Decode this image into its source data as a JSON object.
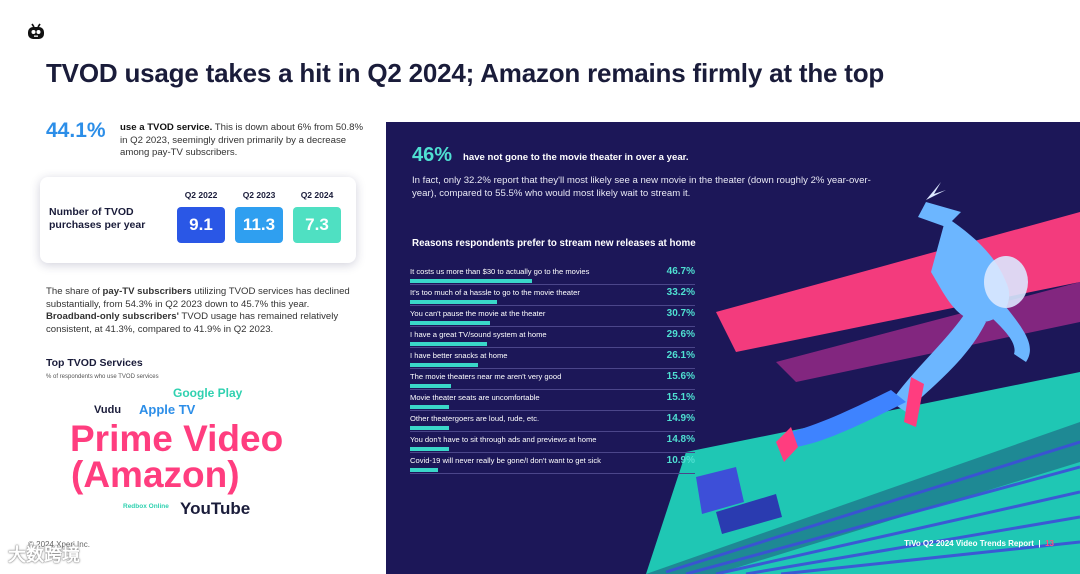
{
  "title": "TVOD usage takes a hit in Q2 2024; Amazon remains firmly at the top",
  "stat": {
    "value": "44.1%",
    "bold": "use a TVOD service.",
    "text": " This is down about 6% from 50.8% in Q2 2023, seemingly driven primarily by a decrease among pay-TV subscribers."
  },
  "purchases": {
    "label": "Number of TVOD purchases per year",
    "years": [
      "Q2 2022",
      "Q2 2023",
      "Q2 2024"
    ],
    "values": [
      "9.1",
      "11.3",
      "7.3"
    ],
    "colors": [
      "#2a57e6",
      "#2f9ff0",
      "#4fe0c2"
    ]
  },
  "share_paragraph": {
    "t1": "The share of ",
    "b1": "pay-TV subscribers",
    "t2": " utilizing TVOD services has declined substantially, from 54.3% in Q2 2023 down to 45.7% this year. ",
    "b2": "Broadband-only subscribers'",
    "t3": " TVOD usage has remained relatively consistent, at 41.3%, compared to 41.9% in Q2 2023."
  },
  "top_services": {
    "title": "Top TVOD Services",
    "subtitle": "% of respondents who use TVOD services",
    "google_play": "Google Play",
    "vudu": "Vudu",
    "apple_tv": "Apple TV",
    "prime_line1": "Prime Video",
    "prime_line2": "(Amazon)",
    "redbox": "Redbox Online",
    "youtube": "YouTube"
  },
  "colors": {
    "accent_teal": "#4fe0d2",
    "accent_pink": "#ff3d7f",
    "panel_navy": "#1c1758",
    "stat_blue": "#2c8ee8"
  },
  "footer": {
    "copyright": "© 2024 Xperi Inc.",
    "watermark": "大数跨境",
    "report": "TiVo Q2 2024 Video Trends Report",
    "separator": "|",
    "page": "13"
  },
  "panel": {
    "big": "46%",
    "big_text": "have not gone to the movie theater in over a year.",
    "desc": "In fact, only 32.2% report that they'll most likely see a new movie in the theater (down roughly 2% year-over-year), compared to 55.5% who would most likely wait to stream it.",
    "reasons_title": "Reasons respondents prefer to stream new releases at home",
    "reasons": [
      {
        "label": "It costs us more than $30 to actually go to the movies",
        "value": "46.7%",
        "pct": 46.7
      },
      {
        "label": "It's too much of a hassle to go to the movie theater",
        "value": "33.2%",
        "pct": 33.2
      },
      {
        "label": "You can't pause the movie at the theater",
        "value": "30.7%",
        "pct": 30.7
      },
      {
        "label": "I have a great TV/sound system at home",
        "value": "29.6%",
        "pct": 29.6
      },
      {
        "label": "I have better snacks at home",
        "value": "26.1%",
        "pct": 26.1
      },
      {
        "label": "The movie theaters near me aren't very good",
        "value": "15.6%",
        "pct": 15.6
      },
      {
        "label": "Movie theater seats are uncomfortable",
        "value": "15.1%",
        "pct": 15.1
      },
      {
        "label": "Other theatergoers are loud, rude, etc.",
        "value": "14.9%",
        "pct": 14.9
      },
      {
        "label": "You don't have to sit through ads and previews at home",
        "value": "14.8%",
        "pct": 14.8
      },
      {
        "label": "Covid-19 will never really be gone/I don't want to get sick",
        "value": "10.9%",
        "pct": 10.9
      }
    ]
  }
}
